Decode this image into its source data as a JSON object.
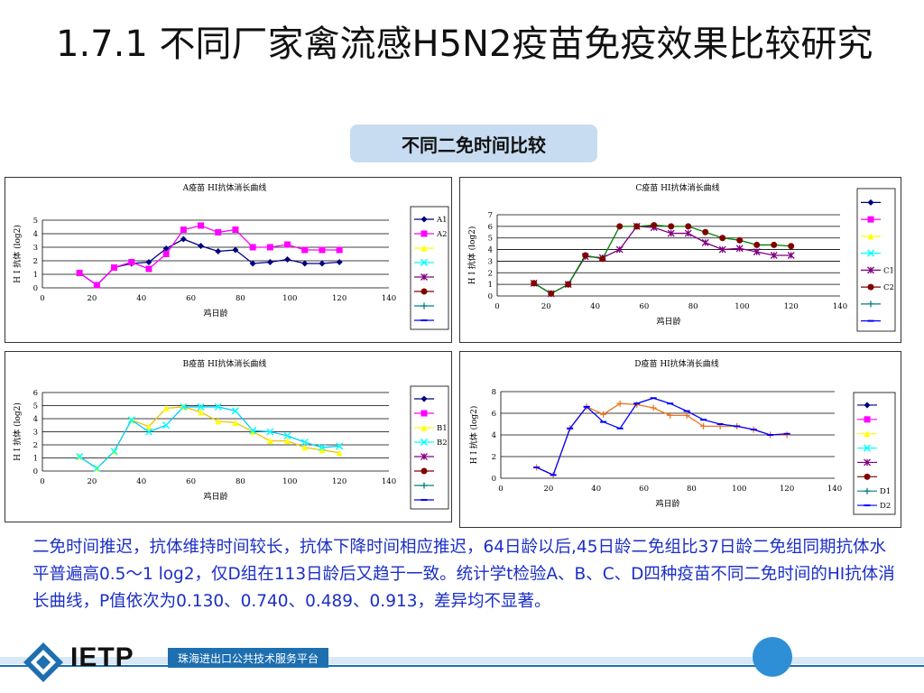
{
  "title": "1.7.1  不同厂家禽流感H5N2疫苗免疫效果比较研究",
  "subtitle": "不同二免时间比较",
  "description": "二免时间推迟，抗体维持时间较长，抗体下降时间相应推迟，64日龄以后,45日龄二免组比37日龄二免组同期抗体水平普遍高0.5～1 log2，仅D组在113日龄后又趋于一致。统计学t检验A、B、C、D四种疫苗不同二免时间的HI抗体消长曲线，P值依次为0.130、0.740、0.489、0.913，差异均不显著。",
  "footer": {
    "logo": "IETP",
    "org": "珠海进出口公共技术服务平台"
  },
  "colors": {
    "title": "#111111",
    "description": "#1b2fc6",
    "accent": "#1d6fb0",
    "pill": "#c7dcf0"
  },
  "legend_markers": [
    {
      "color": "#000080",
      "marker": "diamond"
    },
    {
      "color": "#ff00ff",
      "marker": "square"
    },
    {
      "color": "#ffff00",
      "marker": "triangle"
    },
    {
      "color": "#00ffff",
      "marker": "x"
    },
    {
      "color": "#800080",
      "marker": "star"
    },
    {
      "color": "#800000",
      "marker": "circle"
    },
    {
      "color": "#008080",
      "marker": "plus"
    },
    {
      "color": "#0000ff",
      "marker": "dash"
    }
  ],
  "chart_data": [
    {
      "type": "line",
      "title": "A疫苗  HI抗体消长曲线",
      "xlabel": "鸡日龄",
      "ylabel": "H I 抗体 (log2)",
      "xlim": [
        0,
        140
      ],
      "xticks": [
        0,
        20,
        40,
        60,
        80,
        100,
        120,
        140
      ],
      "ylim": [
        0,
        5
      ],
      "yticks": [
        0,
        1,
        2,
        3,
        4,
        5
      ],
      "legend_labels": [
        "A1",
        "A2",
        "",
        "",
        "",
        "",
        "",
        ""
      ],
      "series": [
        {
          "name": "A1",
          "slot": 0,
          "color": "#000080",
          "marker": "diamond",
          "x": [
            15,
            22,
            29,
            36,
            43,
            50,
            57,
            64,
            71,
            78,
            85,
            92,
            99,
            106,
            113,
            120
          ],
          "y": [
            1.1,
            0.2,
            1.5,
            1.8,
            1.9,
            2.9,
            3.6,
            3.1,
            2.7,
            2.8,
            1.8,
            1.9,
            2.1,
            1.8,
            1.8,
            1.9
          ]
        },
        {
          "name": "A2",
          "slot": 1,
          "color": "#ff00ff",
          "marker": "square",
          "x": [
            15,
            22,
            29,
            36,
            43,
            50,
            57,
            64,
            71,
            78,
            85,
            92,
            99,
            106,
            113,
            120
          ],
          "y": [
            1.1,
            0.2,
            1.5,
            1.9,
            1.4,
            2.5,
            4.3,
            4.6,
            4.1,
            4.3,
            3.0,
            3.0,
            3.2,
            2.8,
            2.8,
            2.8
          ]
        }
      ]
    },
    {
      "type": "line",
      "title": "C疫苗  HI抗体消长曲线",
      "xlabel": "鸡日龄",
      "ylabel": "H I 抗体 (log2)",
      "xlim": [
        0,
        140
      ],
      "xticks": [
        0,
        20,
        40,
        60,
        80,
        100,
        120,
        140
      ],
      "ylim": [
        0,
        7
      ],
      "yticks": [
        0,
        1,
        2,
        3,
        4,
        5,
        6,
        7
      ],
      "legend_labels": [
        "",
        "",
        "",
        "",
        "C1",
        "C2",
        "",
        ""
      ],
      "series": [
        {
          "name": "C1",
          "slot": 4,
          "color": "#800080",
          "marker": "star",
          "x": [
            15,
            22,
            29,
            36,
            43,
            50,
            57,
            64,
            71,
            78,
            85,
            92,
            99,
            106,
            113,
            120
          ],
          "y": [
            1.1,
            0.2,
            1.0,
            3.4,
            3.3,
            4.0,
            6.0,
            5.9,
            5.4,
            5.4,
            4.6,
            4.0,
            4.1,
            3.8,
            3.5,
            3.5
          ]
        },
        {
          "name": "C2",
          "slot": 5,
          "color": "#008000",
          "markerColor": "#800000",
          "marker": "circle",
          "x": [
            15,
            22,
            29,
            36,
            43,
            50,
            57,
            64,
            71,
            78,
            85,
            92,
            99,
            106,
            113,
            120
          ],
          "y": [
            1.1,
            0.2,
            1.0,
            3.5,
            3.2,
            6.0,
            6.0,
            6.1,
            6.0,
            6.0,
            5.5,
            5.0,
            4.8,
            4.4,
            4.4,
            4.3
          ]
        }
      ]
    },
    {
      "type": "line",
      "title": "B疫苗  HI抗体消长曲线",
      "xlabel": "鸡日龄",
      "ylabel": "H I 抗体 (log2)",
      "xlim": [
        0,
        140
      ],
      "xticks": [
        0,
        20,
        40,
        60,
        80,
        100,
        120,
        140
      ],
      "ylim": [
        0,
        6
      ],
      "yticks": [
        0,
        1,
        2,
        3,
        4,
        5,
        6
      ],
      "legend_labels": [
        "",
        "",
        "B1",
        "B2",
        "",
        "",
        "",
        ""
      ],
      "series": [
        {
          "name": "B1",
          "slot": 2,
          "color": "#e6c800",
          "markerColor": "#ffff00",
          "marker": "triangle",
          "x": [
            15,
            22,
            29,
            36,
            43,
            50,
            57,
            64,
            71,
            78,
            85,
            92,
            99,
            106,
            113,
            120
          ],
          "y": [
            1.1,
            0.2,
            1.5,
            3.9,
            3.4,
            4.8,
            4.9,
            4.5,
            3.8,
            3.7,
            3.0,
            2.3,
            2.3,
            1.8,
            1.6,
            1.4
          ]
        },
        {
          "name": "B2",
          "slot": 3,
          "color": "#00ccff",
          "markerColor": "#00ffff",
          "marker": "x",
          "x": [
            15,
            22,
            29,
            36,
            43,
            50,
            57,
            64,
            71,
            78,
            85,
            92,
            99,
            106,
            113,
            120
          ],
          "y": [
            1.1,
            0.2,
            1.5,
            3.9,
            3.0,
            3.5,
            4.9,
            4.9,
            4.9,
            4.6,
            3.1,
            3.0,
            2.7,
            2.2,
            1.8,
            1.9
          ]
        }
      ]
    },
    {
      "type": "line",
      "title": "D疫苗  HI抗体消长曲线",
      "xlabel": "鸡日龄",
      "ylabel": "H I 抗体 (log2)",
      "xlim": [
        0,
        140
      ],
      "xticks": [
        0,
        20,
        40,
        60,
        80,
        100,
        120,
        140
      ],
      "ylim": [
        0,
        8
      ],
      "yticks": [
        0,
        2,
        4,
        6,
        8
      ],
      "legend_labels": [
        "",
        "",
        "",
        "",
        "",
        "",
        "D1",
        "D2"
      ],
      "series": [
        {
          "name": "D1",
          "slot": 6,
          "color": "#e87722",
          "marker": "plus",
          "x": [
            15,
            22,
            29,
            36,
            43,
            50,
            57,
            64,
            71,
            78,
            85,
            92,
            99,
            106,
            113,
            120
          ],
          "y": [
            1.0,
            0.3,
            4.6,
            6.6,
            5.9,
            6.9,
            6.8,
            6.5,
            5.8,
            5.8,
            4.8,
            4.8,
            4.8,
            4.5,
            4.0,
            4.0
          ]
        },
        {
          "name": "D2",
          "slot": 7,
          "color": "#0000ff",
          "marker": "dash",
          "x": [
            15,
            22,
            29,
            36,
            43,
            50,
            57,
            64,
            71,
            78,
            85,
            92,
            99,
            106,
            113,
            120
          ],
          "y": [
            1.0,
            0.3,
            4.6,
            6.6,
            5.2,
            4.6,
            6.9,
            7.4,
            6.9,
            6.2,
            5.4,
            5.0,
            4.8,
            4.5,
            4.0,
            4.1
          ]
        }
      ]
    }
  ]
}
